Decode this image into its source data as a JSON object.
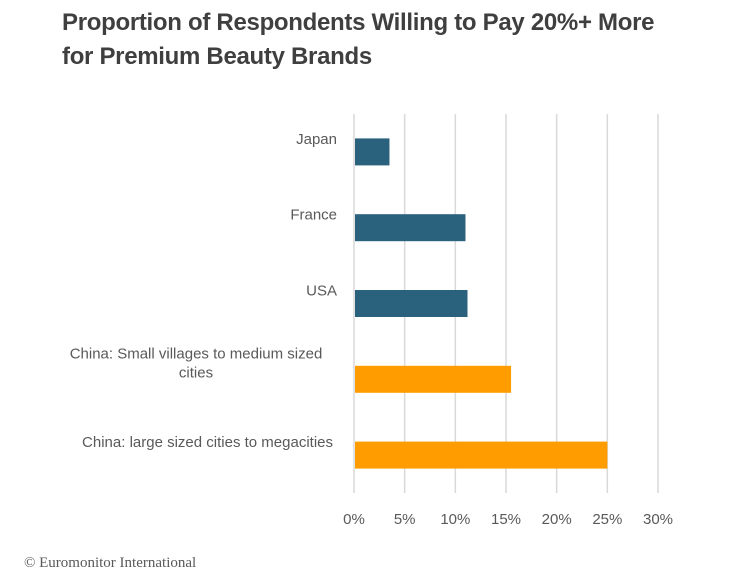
{
  "chart_data": {
    "type": "bar",
    "orientation": "horizontal",
    "title": "Proportion of Respondents Willing to Pay 20%+ More for Premium Beauty Brands",
    "title_lines": [
      "Proportion of Respondents Willing to Pay 20%+ More",
      "for Premium Beauty Brands"
    ],
    "categories": [
      "Japan",
      "France",
      "USA",
      "China: Small villages to medium sized cities",
      "China: large sized cities to megacities"
    ],
    "category_label_lines": [
      [
        "Japan"
      ],
      [
        "France"
      ],
      [
        "USA"
      ],
      [
        "China: Small villages to medium sized",
        "cities"
      ],
      [
        "China: large sized cities to megacities"
      ]
    ],
    "values": [
      3.5,
      11.0,
      11.2,
      15.5,
      25.0
    ],
    "bar_colors": [
      "#2a617d",
      "#2a617d",
      "#2a617d",
      "#ff9c00",
      "#ff9c00"
    ],
    "xlabel": "",
    "ylabel": "",
    "xlim": [
      0,
      30
    ],
    "x_ticks": [
      0,
      5,
      10,
      15,
      20,
      25,
      30
    ],
    "x_tick_labels": [
      "0%",
      "5%",
      "10%",
      "15%",
      "20%",
      "25%",
      "30%"
    ],
    "grid": "vertical",
    "legend": "none"
  },
  "source": "© Euromonitor International"
}
